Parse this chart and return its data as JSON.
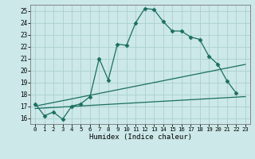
{
  "xlabel": "Humidex (Indice chaleur)",
  "bg_color": "#cce8e8",
  "grid_color": "#aacfcf",
  "line_color": "#1a6e60",
  "xlim": [
    -0.5,
    23.5
  ],
  "ylim": [
    15.5,
    25.5
  ],
  "xticks": [
    0,
    1,
    2,
    3,
    4,
    5,
    6,
    7,
    8,
    9,
    10,
    11,
    12,
    13,
    14,
    15,
    16,
    17,
    18,
    19,
    20,
    21,
    22,
    23
  ],
  "yticks": [
    16,
    17,
    18,
    19,
    20,
    21,
    22,
    23,
    24,
    25
  ],
  "curve1_x": [
    0,
    1,
    2,
    3,
    4,
    5,
    6,
    7,
    8,
    9,
    10,
    11,
    12,
    13,
    14,
    15,
    16,
    17,
    18,
    19,
    20,
    21,
    22
  ],
  "curve1_y": [
    17.2,
    16.2,
    16.5,
    15.9,
    17.0,
    17.2,
    17.8,
    21.0,
    19.2,
    22.2,
    22.1,
    24.0,
    25.2,
    25.1,
    24.1,
    23.3,
    23.3,
    22.8,
    22.6,
    21.2,
    20.5,
    19.1,
    18.1
  ],
  "curve2_x": [
    0,
    23
  ],
  "curve2_y": [
    17.0,
    20.5
  ],
  "curve3_x": [
    0,
    23
  ],
  "curve3_y": [
    16.8,
    17.8
  ],
  "marker": "D",
  "marker_size": 2.5,
  "linewidth": 0.9
}
